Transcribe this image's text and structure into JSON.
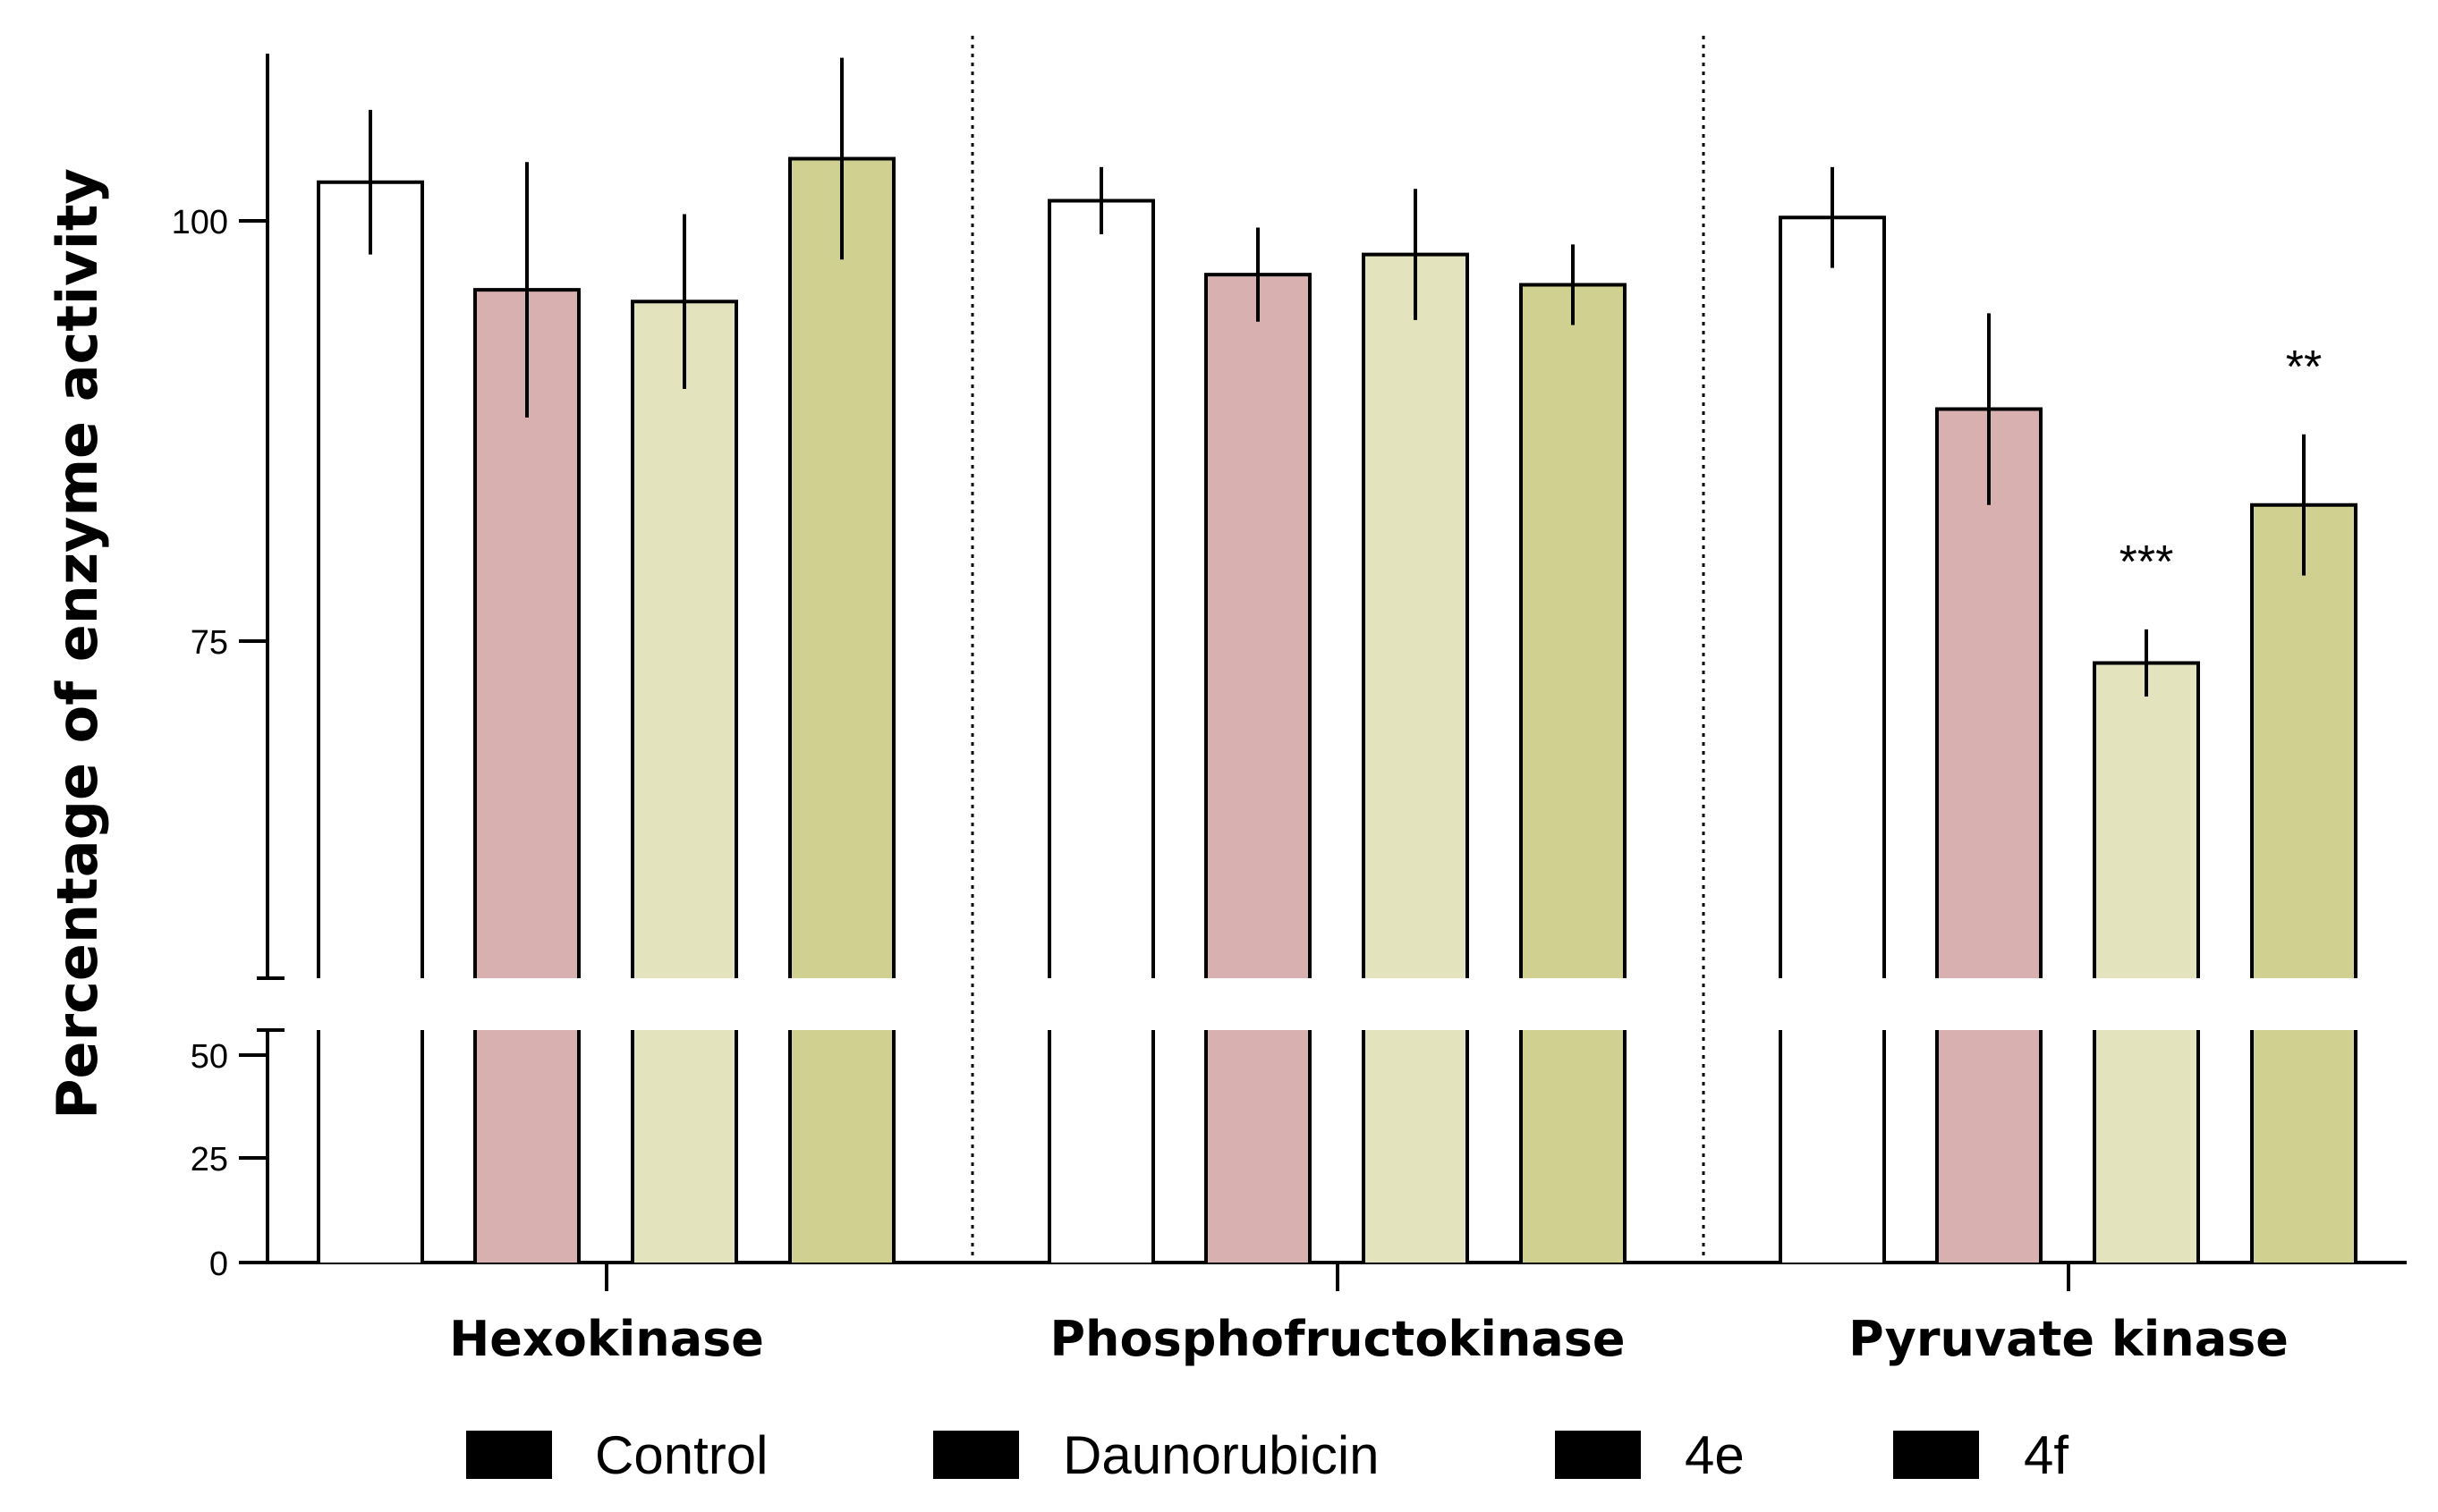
{
  "chart_data": {
    "type": "bar",
    "ylabel": "Percentage of enzyme activity",
    "xlabel": "",
    "categories": [
      "Hexokinase",
      "Phosphofructokinase",
      "Pyruvate kinase"
    ],
    "series": [
      {
        "name": "Control",
        "color": "#ffffff",
        "values": [
          102.3,
          101.2,
          100.2
        ],
        "errors": [
          4.3,
          2.0,
          3.0
        ]
      },
      {
        "name": "Daunorubicin",
        "color": "#d8b0b0",
        "values": [
          95.9,
          96.8,
          88.8
        ],
        "errors": [
          7.6,
          2.8,
          5.7
        ]
      },
      {
        "name": "4e",
        "color": "#e3e4bd",
        "values": [
          95.2,
          98.0,
          73.7
        ],
        "errors": [
          5.2,
          3.9,
          2.0
        ]
      },
      {
        "name": "4f",
        "color": "#d0d190",
        "values": [
          103.7,
          96.2,
          83.1
        ],
        "errors": [
          6.0,
          2.4,
          4.2
        ]
      }
    ],
    "significance": [
      {
        "category": "Pyruvate kinase",
        "series": "4e",
        "label": "***"
      },
      {
        "category": "Pyruvate kinase",
        "series": "4f",
        "label": "**"
      }
    ],
    "axis_break": {
      "lower_range": [
        0,
        55
      ],
      "upper_range": [
        55,
        110
      ]
    },
    "yticks_lower": [
      "0",
      "25",
      "50"
    ],
    "yticks_upper": [
      "75",
      "100"
    ],
    "ytick_values_lower": [
      0,
      25,
      50
    ],
    "ytick_values_upper": [
      75,
      100
    ],
    "legend": {
      "position": "bottom",
      "entries": [
        "Control",
        "Daunorubicin",
        "4e",
        "4f"
      ]
    }
  }
}
